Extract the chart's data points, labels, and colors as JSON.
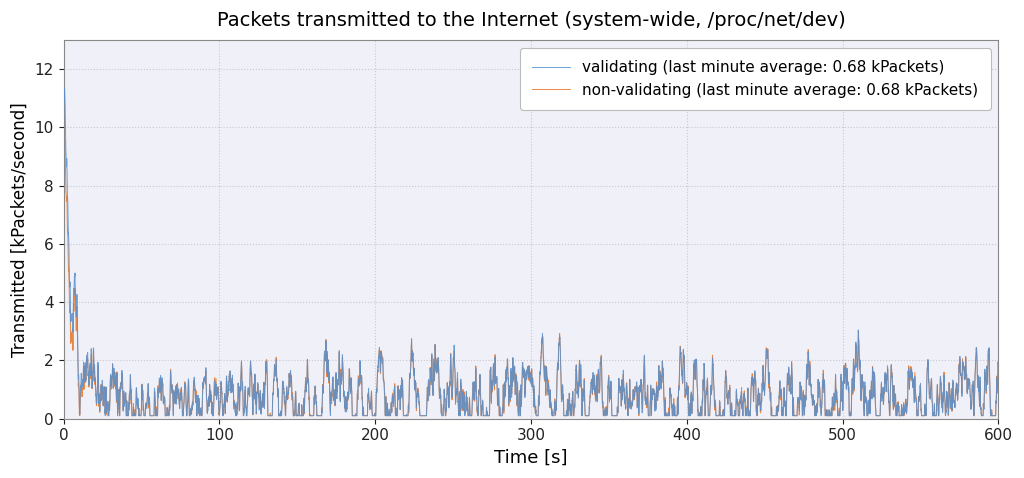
{
  "title": "Packets transmitted to the Internet (system-wide, /proc/net/dev)",
  "xlabel": "Time [s]",
  "ylabel": "Transmitted [kPackets/second]",
  "xlim": [
    0,
    600
  ],
  "ylim": [
    0,
    13
  ],
  "yticks": [
    0,
    2,
    4,
    6,
    8,
    10,
    12
  ],
  "xticks": [
    0,
    100,
    200,
    300,
    400,
    500,
    600
  ],
  "color_validating": "#5590d0",
  "color_nonvalidating": "#e8823a",
  "legend_validating": "validating (last minute average: 0.68 kPackets)",
  "legend_nonvalidating": "non-validating (last minute average: 0.68 kPackets)",
  "figsize": [
    10.24,
    4.78
  ],
  "dpi": 100,
  "n_points": 6000,
  "peak_validating": 11.0,
  "peak_nonvalidating": 9.2,
  "decay_rate": 0.18,
  "steady_state": 0.85,
  "noise_scale": 0.09,
  "grid_color": "#c8c8d0",
  "bg_color": "#f0f0f8"
}
